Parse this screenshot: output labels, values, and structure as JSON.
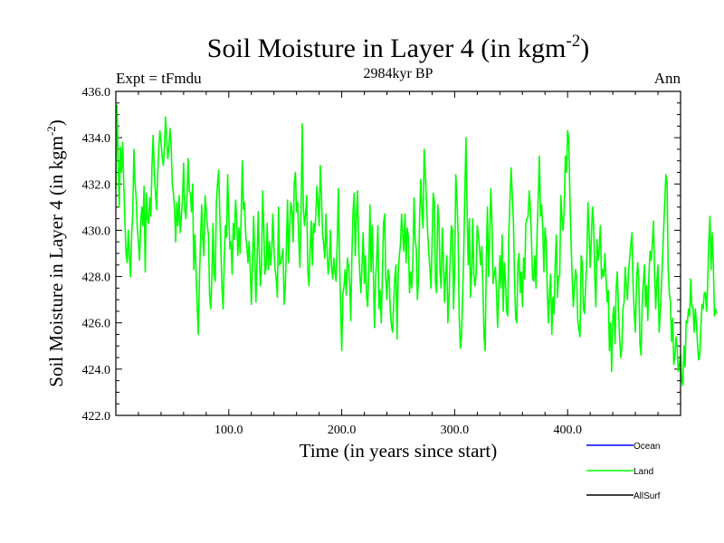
{
  "chart_data": {
    "type": "line",
    "title_main": "Soil Moisture in Layer 4 (in kgm",
    "title_sup": "-2",
    "title_close": ")",
    "subtitle_left": "Expt = tFmdu",
    "subtitle_center": "2984kyr BP",
    "subtitle_right": "Ann",
    "xlabel": "Time (in years since start)",
    "ylabel_main": "Soil Moisture in Layer 4 (in kgm",
    "ylabel_sup": "-2",
    "ylabel_close": ")",
    "xlim": [
      0,
      500
    ],
    "ylim": [
      422,
      436
    ],
    "x_ticks": [
      100,
      200,
      300,
      400
    ],
    "x_tick_labels": [
      "100.0",
      "200.0",
      "300.0",
      "400.0"
    ],
    "y_ticks": [
      422,
      424,
      426,
      428,
      430,
      432,
      434,
      436
    ],
    "y_tick_labels": [
      "422.0",
      "424.0",
      "426.0",
      "428.0",
      "430.0",
      "432.0",
      "434.0",
      "436.0"
    ],
    "legend": [
      {
        "name": "Ocean",
        "color": "#0000ff"
      },
      {
        "name": "Land",
        "color": "#00ff00"
      },
      {
        "name": "AllSurf",
        "color": "#000000"
      }
    ],
    "series": [
      {
        "name": "Land",
        "color": "#00ff00",
        "x_start": 0,
        "x_step": 1,
        "values": [
          431.8,
          435.4,
          433.2,
          431.0,
          433.6,
          432.5,
          433.8,
          432.0,
          430.5,
          429.0,
          428.6,
          430.0,
          428.9,
          428.0,
          429.8,
          430.8,
          433.5,
          432.0,
          431.4,
          430.1,
          429.5,
          428.7,
          430.3,
          431.0,
          430.2,
          431.9,
          428.2,
          431.6,
          430.5,
          430.3,
          431.4,
          430.6,
          432.8,
          434.1,
          432.6,
          431.7,
          430.9,
          432.4,
          433.5,
          434.3,
          433.8,
          433.2,
          432.8,
          433.5,
          434.9,
          434.0,
          433.1,
          433.6,
          434.4,
          433.6,
          432.0,
          431.6,
          430.9,
          429.5,
          431.2,
          430.2,
          431.5,
          429.9,
          430.6,
          431.3,
          432.9,
          430.9,
          430.5,
          431.4,
          433.1,
          431.7,
          431.6,
          430.8,
          432.0,
          428.3,
          429.8,
          428.2,
          426.8,
          425.5,
          427.9,
          429.6,
          431.1,
          429.6,
          428.9,
          431.5,
          430.9,
          430.2,
          429.8,
          427.2,
          426.6,
          427.9,
          430.3,
          428.1,
          427.8,
          431.2,
          432.0,
          432.6,
          430.8,
          429.2,
          427.5,
          426.6,
          428.8,
          430.2,
          429.7,
          432.4,
          430.6,
          429.2,
          429.5,
          428.1,
          430.3,
          429.6,
          431.3,
          430.5,
          428.9,
          430.1,
          429.0,
          430.7,
          433.0,
          430.9,
          431.2,
          429.8,
          429.3,
          428.6,
          429.5,
          428.3,
          426.8,
          428.5,
          430.6,
          428.9,
          426.9,
          428.7,
          430.8,
          428.9,
          427.6,
          428.5,
          431.7,
          430.1,
          428.1,
          428.4,
          430.3,
          428.3,
          429.5,
          428.5,
          429.1,
          430.7,
          429.2,
          428.3,
          427.9,
          427.1,
          431.0,
          428.5,
          428.6,
          428.9,
          429.2,
          426.8,
          427.5,
          429.3,
          431.3,
          428.6,
          430.2,
          431.2,
          430.8,
          429.5,
          432.1,
          432.5,
          430.8,
          431.2,
          429.5,
          428.4,
          430.8,
          434.6,
          431.0,
          430.2,
          430.7,
          431.5,
          428.2,
          427.6,
          429.1,
          430.4,
          428.5,
          430.3,
          429.9,
          430.6,
          431.9,
          431.2,
          430.2,
          432.8,
          431.6,
          429.9,
          429.4,
          428.8,
          430.7,
          429.1,
          428.1,
          428.6,
          430.0,
          428.4,
          427.9,
          428.8,
          428.2,
          427.8,
          429.4,
          431.8,
          428.9,
          426.7,
          424.8,
          427.2,
          427.6,
          428.3,
          427.2,
          428.8,
          428.5,
          427.7,
          426.1,
          428.9,
          430.8,
          431.6,
          428.9,
          430.6,
          431.7,
          429.4,
          428.1,
          427.3,
          428.6,
          429.9,
          427.7,
          428.9,
          427.1,
          426.7,
          428.4,
          431.1,
          428.2,
          430.2,
          428.2,
          425.8,
          427.9,
          428.8,
          430.2,
          426.6,
          427.4,
          426.0,
          428.1,
          430.3,
          430.7,
          427.9,
          427.0,
          428.3,
          428.0,
          426.5,
          425.9,
          425.6,
          426.8,
          428.0,
          428.5,
          425.3,
          428.1,
          428.9,
          429.4,
          430.7,
          429.8,
          429.1,
          430.7,
          428.6,
          430.1,
          429.7,
          427.3,
          428.2,
          427.5,
          428.6,
          431.4,
          429.6,
          429.2,
          427.0,
          427.9,
          430.6,
          432.2,
          430.8,
          430.1,
          433.5,
          432.5,
          431.3,
          430.0,
          429.1,
          428.4,
          427.5,
          429.4,
          431.6,
          431.3,
          427.7,
          427.3,
          431.1,
          430.5,
          428.2,
          427.5,
          430.1,
          428.8,
          426.9,
          428.1,
          428.9,
          426.0,
          427.1,
          428.7,
          430.2,
          430.0,
          426.6,
          428.4,
          432.4,
          431.4,
          429.9,
          426.3,
          424.9,
          425.4,
          427.0,
          429.0,
          431.6,
          434.0,
          430.8,
          428.5,
          430.5,
          427.1,
          428.1,
          430.5,
          428.1,
          427.6,
          428.1,
          430.2,
          429.8,
          429.2,
          428.5,
          429.3,
          427.6,
          425.4,
          424.8,
          428.7,
          431.0,
          428.0,
          429.6,
          431.8,
          430.4,
          427.7,
          428.1,
          428.4,
          427.4,
          425.8,
          427.2,
          428.9,
          427.5,
          429.8,
          426.5,
          428.6,
          427.8,
          426.5,
          426.3,
          429.9,
          431.4,
          432.7,
          431.5,
          430.4,
          428.0,
          426.2,
          426.0,
          428.6,
          429.0,
          427.3,
          428.2,
          426.7,
          428.8,
          427.9,
          430.3,
          430.5,
          430.6,
          431.7,
          431.0,
          429.6,
          427.9,
          427.8,
          428.9,
          427.5,
          429.9,
          431.4,
          433.2,
          430.6,
          431.1,
          430.0,
          428.2,
          430.1,
          429.5,
          427.4,
          426.0,
          427.3,
          428.1,
          425.5,
          427.1,
          426.4,
          428.5,
          429.8,
          427.1,
          428.0,
          428.0,
          431.5,
          430.5,
          430.0,
          431.0,
          433.2,
          432.5,
          434.3,
          434.0,
          431.5,
          429.6,
          428.0,
          426.7,
          427.5,
          428.3,
          428.0,
          426.1,
          425.7,
          425.4,
          428.9,
          428.6,
          426.6,
          426.4,
          427.7,
          428.7,
          431.2,
          430.0,
          428.4,
          429.7,
          431.0,
          430.3,
          428.0,
          426.7,
          429.6,
          428.7,
          429.2,
          430.2,
          427.9,
          428.3,
          428.0,
          429.0,
          427.9,
          426.9,
          427.4,
          424.8,
          426.0,
          423.9,
          426.3,
          426.7,
          425.1,
          427.5,
          428.2,
          426.6,
          425.4,
          424.5,
          424.9,
          426.6,
          426.9,
          428.4,
          427.6,
          427.0,
          428.3,
          428.8,
          429.4,
          429.9,
          427.6,
          426.4,
          425.6,
          427.8,
          428.6,
          427.9,
          425.1,
          424.6,
          426.8,
          427.7,
          428.5,
          426.7,
          427.6,
          426.1,
          428.1,
          429.1,
          428.7,
          429.4,
          430.4,
          428.2,
          426.6,
          427.8,
          428.5,
          425.6,
          426.4,
          427.5,
          428.7,
          430.0,
          431.2,
          432.4,
          432.1,
          428.4,
          427.3,
          426.9,
          425.2,
          426.2,
          424.2,
          424.6,
          425.4,
          424.9,
          423.9,
          424.2,
          424.6,
          423.5,
          423.3,
          425.0,
          424.1,
          426.1,
          426.0,
          426.6,
          426.3,
          427.9,
          426.7,
          426.7,
          425.6,
          426.6,
          426.0,
          425.1,
          424.4,
          424.6,
          425.8,
          426.8,
          426.6,
          427.3,
          427.3,
          426.5,
          427.7,
          429.5,
          430.6,
          428.3,
          429.9,
          428.6,
          426.3,
          426.6,
          426.4
        ]
      }
    ]
  }
}
